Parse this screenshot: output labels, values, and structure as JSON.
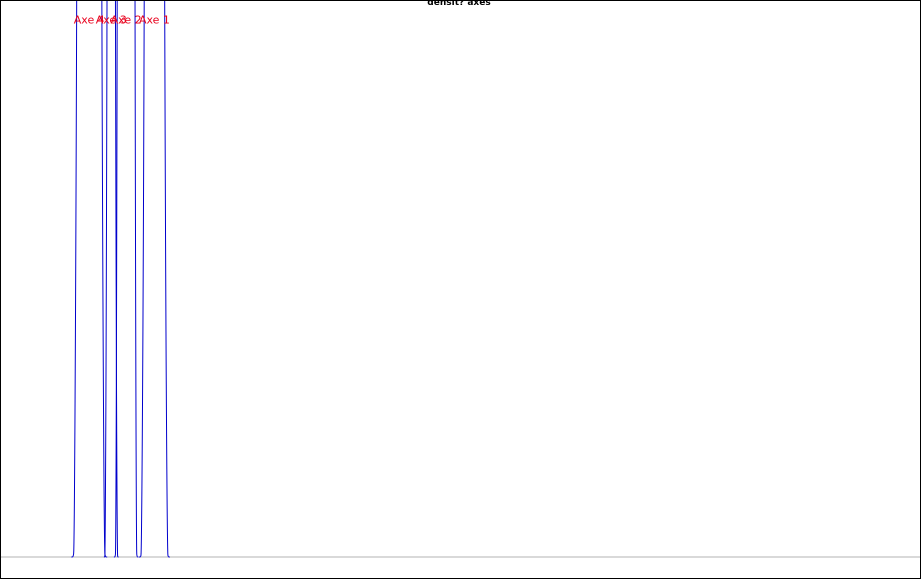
{
  "chart_data": {
    "type": "line",
    "title": "densit? axes",
    "xlabel": "",
    "ylabel": "",
    "xlim": [
      -1.5,
      11.5
    ],
    "ylim": [
      0,
      1
    ],
    "label_y": 0.5575,
    "grid": false,
    "legend": "none",
    "colors": {
      "curve": "#0000cc",
      "label": "#e8001c",
      "baseline": "#b3b3b3",
      "frame": "#000000",
      "background": "#ffffff"
    },
    "series": [
      {
        "name": "Axe 1",
        "center": 0.68,
        "core_halfwidth": 0.115,
        "edge_halfwidth": 0.19,
        "tail_bump": 0.008
      },
      {
        "name": "Axe 2",
        "center": 0.28,
        "core_halfwidth": 0.11,
        "edge_halfwidth": 0.15,
        "tail_bump": 0.016
      },
      {
        "name": "Axe 3",
        "center": 0.07,
        "core_halfwidth": 0.04,
        "edge_halfwidth": 0.09,
        "tail_bump": 0.006
      },
      {
        "name": "Axe 4",
        "center": -0.24,
        "core_halfwidth": 0.15,
        "edge_halfwidth": 0.22,
        "tail_bump": 0.018
      }
    ]
  }
}
